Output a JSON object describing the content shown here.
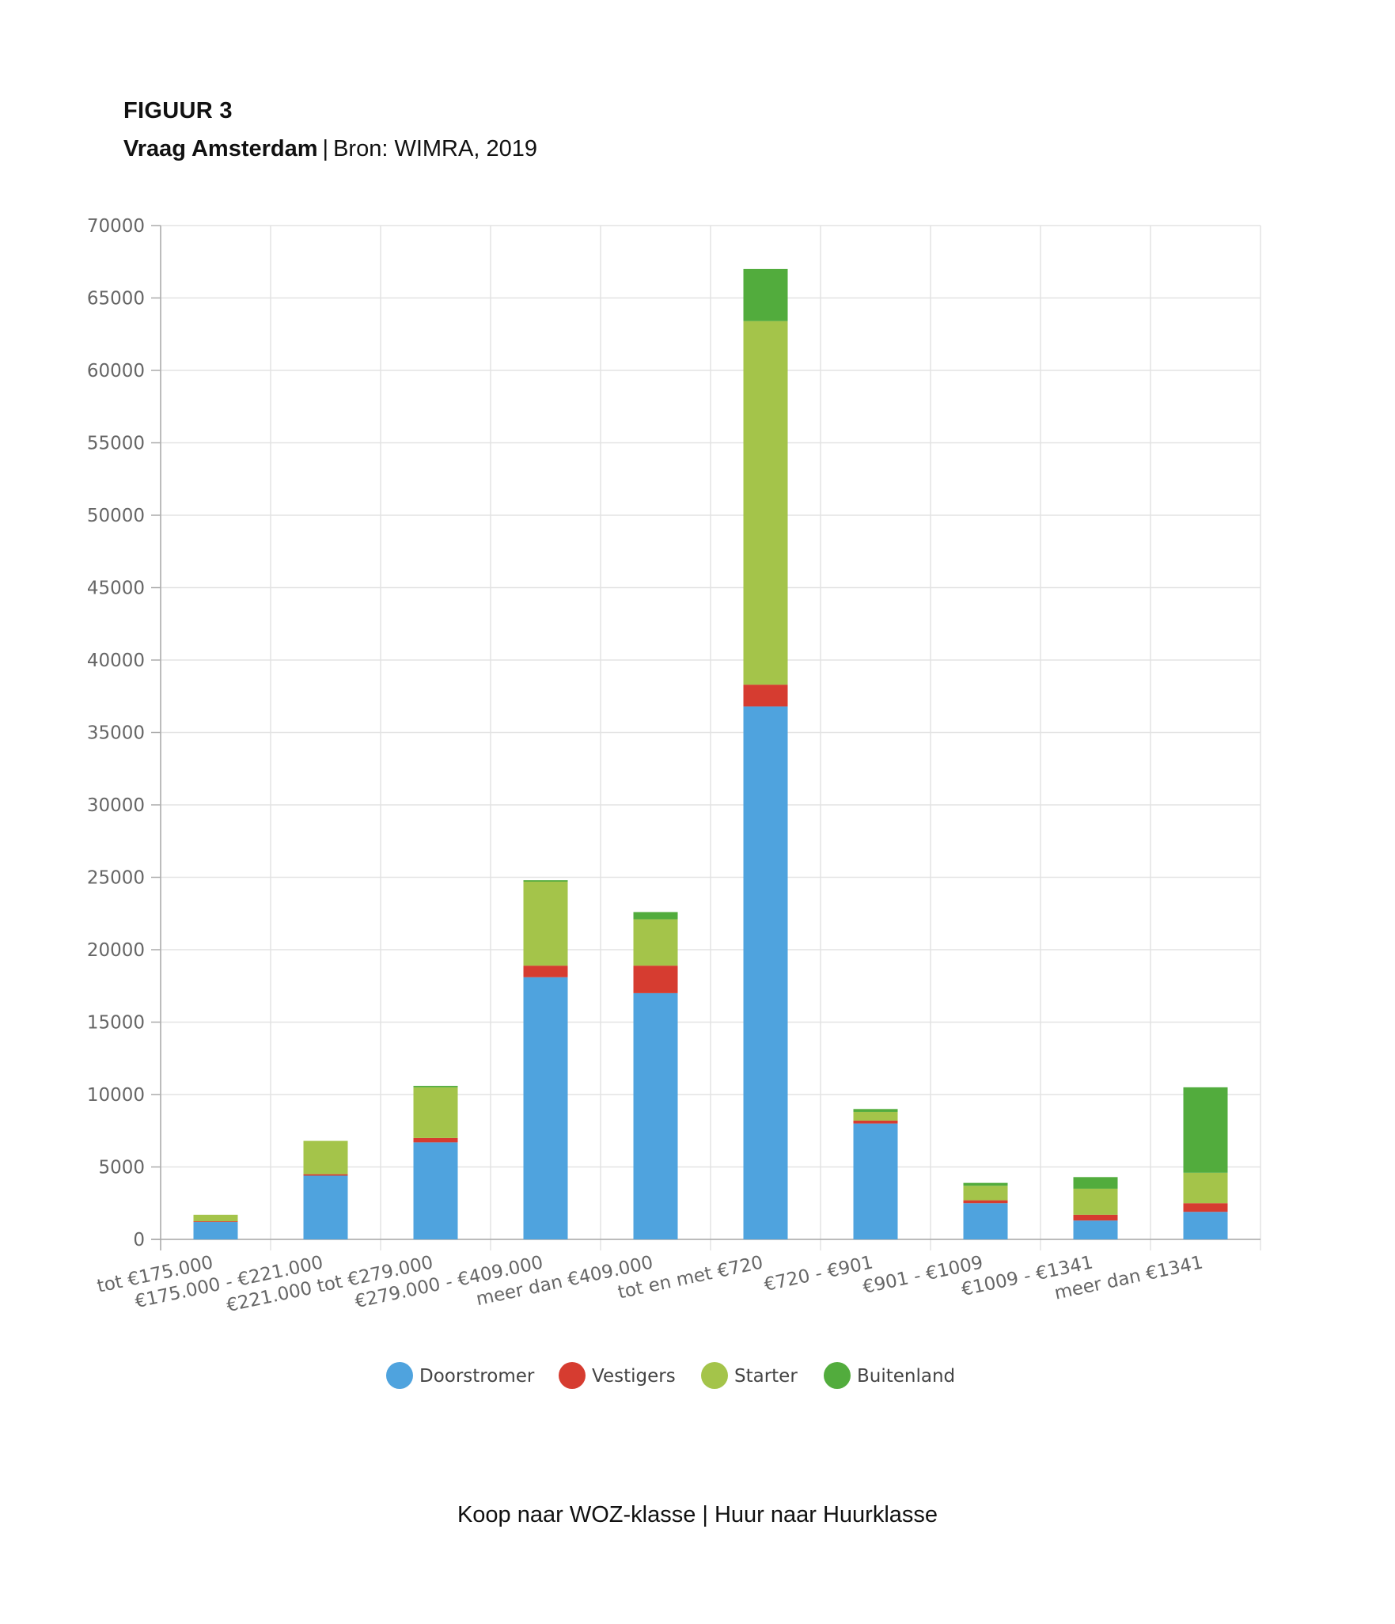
{
  "header": {
    "figure_label": "FIGUUR 3",
    "title": "Vraag Amsterdam",
    "separator": "|",
    "source": "Bron: WIMRA, 2019"
  },
  "footer": {
    "note": "Koop naar WOZ-klasse | Huur naar Huurklasse"
  },
  "chart_data": {
    "type": "bar",
    "stacked": true,
    "title": "Vraag Amsterdam",
    "xlabel": "Koop naar WOZ-klasse | Huur naar Huurklasse",
    "ylabel": "",
    "ylim": [
      0,
      70000
    ],
    "yticks": [
      0,
      5000,
      10000,
      15000,
      20000,
      25000,
      30000,
      35000,
      40000,
      45000,
      50000,
      55000,
      60000,
      65000,
      70000
    ],
    "grid": true,
    "legend_position": "bottom",
    "categories": [
      "tot €175.000",
      "€175.000 - €221.000",
      "€221.000 tot €279.000",
      "€279.000 - €409.000",
      "meer dan €409.000",
      "tot en met €720",
      "€720 - €901",
      "€901 - €1009",
      "€1009 - €1341",
      "meer dan €1341"
    ],
    "series": [
      {
        "name": "Doorstromer",
        "color": "#4fa3de",
        "values": [
          1200,
          4400,
          6700,
          18100,
          17000,
          36800,
          8000,
          2500,
          1300,
          1900
        ]
      },
      {
        "name": "Vestigers",
        "color": "#d63c30",
        "values": [
          50,
          100,
          300,
          800,
          1900,
          1500,
          200,
          200,
          400,
          600
        ]
      },
      {
        "name": "Starter",
        "color": "#a4c44a",
        "values": [
          450,
          2300,
          3500,
          5800,
          3200,
          25100,
          600,
          1000,
          1800,
          2100
        ]
      },
      {
        "name": "Buitenland",
        "color": "#52ac3d",
        "values": [
          0,
          0,
          100,
          100,
          500,
          3600,
          200,
          200,
          800,
          5900
        ]
      }
    ]
  }
}
